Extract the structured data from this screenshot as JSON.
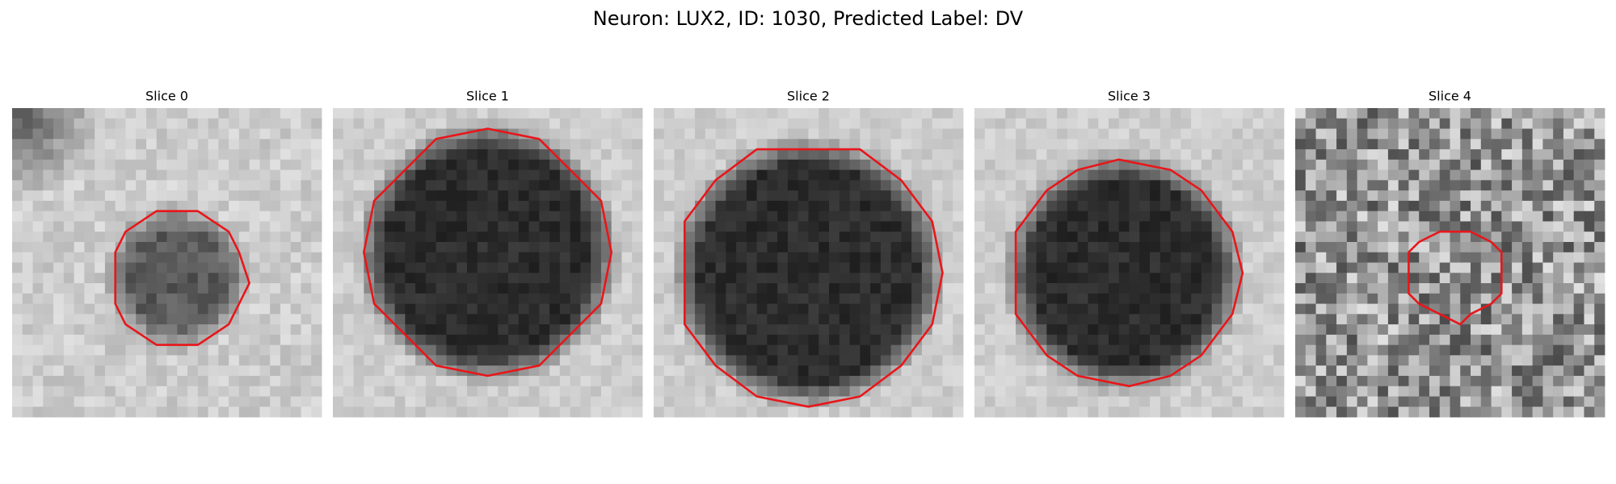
{
  "title": "Neuron: LUX2, ID: 1030, Predicted Label: DV",
  "panels": [
    {
      "title": "Slice 0"
    },
    {
      "title": "Slice 1"
    },
    {
      "title": "Slice 2"
    },
    {
      "title": "Slice 3"
    },
    {
      "title": "Slice 4"
    }
  ]
}
